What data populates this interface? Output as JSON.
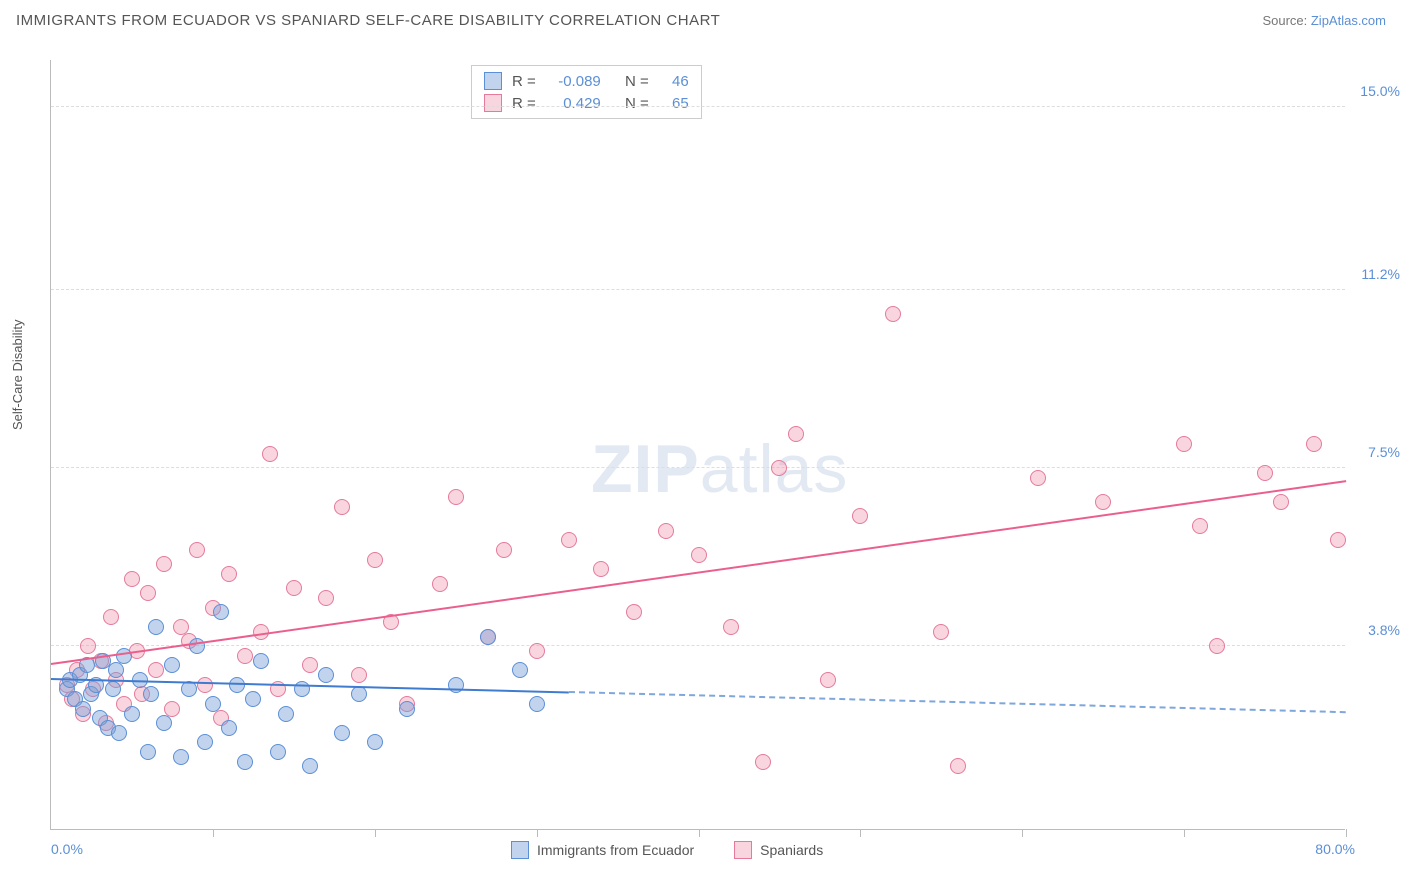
{
  "header": {
    "title": "IMMIGRANTS FROM ECUADOR VS SPANIARD SELF-CARE DISABILITY CORRELATION CHART",
    "source_label": "Source: ",
    "source_name": "ZipAtlas.com"
  },
  "axes": {
    "y_label": "Self-Care Disability",
    "x_min_label": "0.0%",
    "x_max_label": "80.0%",
    "x_min": 0,
    "x_max": 80,
    "y_min": 0,
    "y_max": 16,
    "y_ticks": [
      {
        "v": 3.8,
        "label": "3.8%"
      },
      {
        "v": 7.5,
        "label": "7.5%"
      },
      {
        "v": 11.2,
        "label": "11.2%"
      },
      {
        "v": 15.0,
        "label": "15.0%"
      }
    ],
    "x_tick_positions": [
      10,
      20,
      30,
      40,
      50,
      60,
      70,
      80
    ],
    "grid_color": "#dddddd",
    "axis_color": "#bbbbbb"
  },
  "watermark": {
    "zip": "ZIP",
    "atlas": "atlas"
  },
  "series_a": {
    "name": "Immigrants from Ecuador",
    "fill": "rgba(120,160,215,0.45)",
    "stroke": "#5b8fd6",
    "line_color": "#3f7bd0",
    "dash_color": "#7fa7db",
    "r_label": "R =",
    "r_value": "-0.089",
    "n_label": "N =",
    "n_value": "46",
    "regression": {
      "x1": 0,
      "y1": 3.1,
      "x2_solid": 32,
      "y2_solid": 2.82,
      "x2": 80,
      "y2": 2.4
    },
    "marker_size": 16,
    "points": [
      [
        1.0,
        2.9
      ],
      [
        1.2,
        3.1
      ],
      [
        1.5,
        2.7
      ],
      [
        1.8,
        3.2
      ],
      [
        2.0,
        2.5
      ],
      [
        2.2,
        3.4
      ],
      [
        2.5,
        2.8
      ],
      [
        2.8,
        3.0
      ],
      [
        3.0,
        2.3
      ],
      [
        3.2,
        3.5
      ],
      [
        3.5,
        2.1
      ],
      [
        3.8,
        2.9
      ],
      [
        4.0,
        3.3
      ],
      [
        4.2,
        2.0
      ],
      [
        4.5,
        3.6
      ],
      [
        5.0,
        2.4
      ],
      [
        5.5,
        3.1
      ],
      [
        6.0,
        1.6
      ],
      [
        6.2,
        2.8
      ],
      [
        6.5,
        4.2
      ],
      [
        7.0,
        2.2
      ],
      [
        7.5,
        3.4
      ],
      [
        8.0,
        1.5
      ],
      [
        8.5,
        2.9
      ],
      [
        9.0,
        3.8
      ],
      [
        9.5,
        1.8
      ],
      [
        10.0,
        2.6
      ],
      [
        10.5,
        4.5
      ],
      [
        11.0,
        2.1
      ],
      [
        11.5,
        3.0
      ],
      [
        12.0,
        1.4
      ],
      [
        12.5,
        2.7
      ],
      [
        13.0,
        3.5
      ],
      [
        14.0,
        1.6
      ],
      [
        14.5,
        2.4
      ],
      [
        15.5,
        2.9
      ],
      [
        16.0,
        1.3
      ],
      [
        17.0,
        3.2
      ],
      [
        18.0,
        2.0
      ],
      [
        19.0,
        2.8
      ],
      [
        20.0,
        1.8
      ],
      [
        22.0,
        2.5
      ],
      [
        25.0,
        3.0
      ],
      [
        27.0,
        4.0
      ],
      [
        29.0,
        3.3
      ],
      [
        30.0,
        2.6
      ]
    ]
  },
  "series_b": {
    "name": "Spaniards",
    "fill": "rgba(240,150,175,0.40)",
    "stroke": "#e67a9a",
    "line_color": "#ea5f8d",
    "r_label": "R =",
    "r_value": "0.429",
    "n_label": "N =",
    "n_value": "65",
    "regression": {
      "x1": 0,
      "y1": 3.4,
      "x2": 80,
      "y2": 7.2
    },
    "marker_size": 16,
    "points": [
      [
        1.0,
        3.0
      ],
      [
        1.3,
        2.7
      ],
      [
        1.6,
        3.3
      ],
      [
        2.0,
        2.4
      ],
      [
        2.3,
        3.8
      ],
      [
        2.6,
        2.9
      ],
      [
        3.1,
        3.5
      ],
      [
        3.4,
        2.2
      ],
      [
        3.7,
        4.4
      ],
      [
        4.0,
        3.1
      ],
      [
        4.5,
        2.6
      ],
      [
        5.0,
        5.2
      ],
      [
        5.3,
        3.7
      ],
      [
        5.6,
        2.8
      ],
      [
        6.0,
        4.9
      ],
      [
        6.5,
        3.3
      ],
      [
        7.0,
        5.5
      ],
      [
        7.5,
        2.5
      ],
      [
        8.0,
        4.2
      ],
      [
        8.5,
        3.9
      ],
      [
        9.0,
        5.8
      ],
      [
        9.5,
        3.0
      ],
      [
        10.0,
        4.6
      ],
      [
        10.5,
        2.3
      ],
      [
        11.0,
        5.3
      ],
      [
        12.0,
        3.6
      ],
      [
        13.0,
        4.1
      ],
      [
        13.5,
        7.8
      ],
      [
        14.0,
        2.9
      ],
      [
        15.0,
        5.0
      ],
      [
        16.0,
        3.4
      ],
      [
        17.0,
        4.8
      ],
      [
        18.0,
        6.7
      ],
      [
        19.0,
        3.2
      ],
      [
        20.0,
        5.6
      ],
      [
        21.0,
        4.3
      ],
      [
        22.0,
        2.6
      ],
      [
        24.0,
        5.1
      ],
      [
        25.0,
        6.9
      ],
      [
        27.0,
        4.0
      ],
      [
        28.0,
        5.8
      ],
      [
        30.0,
        3.7
      ],
      [
        32.0,
        6.0
      ],
      [
        34.0,
        5.4
      ],
      [
        36.0,
        4.5
      ],
      [
        38.0,
        6.2
      ],
      [
        40.0,
        5.7
      ],
      [
        42.0,
        4.2
      ],
      [
        45.0,
        7.5
      ],
      [
        46.0,
        8.2
      ],
      [
        48.0,
        3.1
      ],
      [
        50.0,
        6.5
      ],
      [
        44.0,
        1.4
      ],
      [
        52.0,
        10.7
      ],
      [
        55.0,
        4.1
      ],
      [
        56.0,
        1.3
      ],
      [
        61.0,
        7.3
      ],
      [
        65.0,
        6.8
      ],
      [
        70.0,
        8.0
      ],
      [
        71.0,
        6.3
      ],
      [
        75.0,
        7.4
      ],
      [
        76.0,
        6.8
      ],
      [
        72.0,
        3.8
      ],
      [
        78.0,
        8.0
      ],
      [
        79.5,
        6.0
      ]
    ]
  },
  "colors": {
    "title": "#555555",
    "tick_label": "#5b8fd6",
    "background": "#ffffff"
  }
}
